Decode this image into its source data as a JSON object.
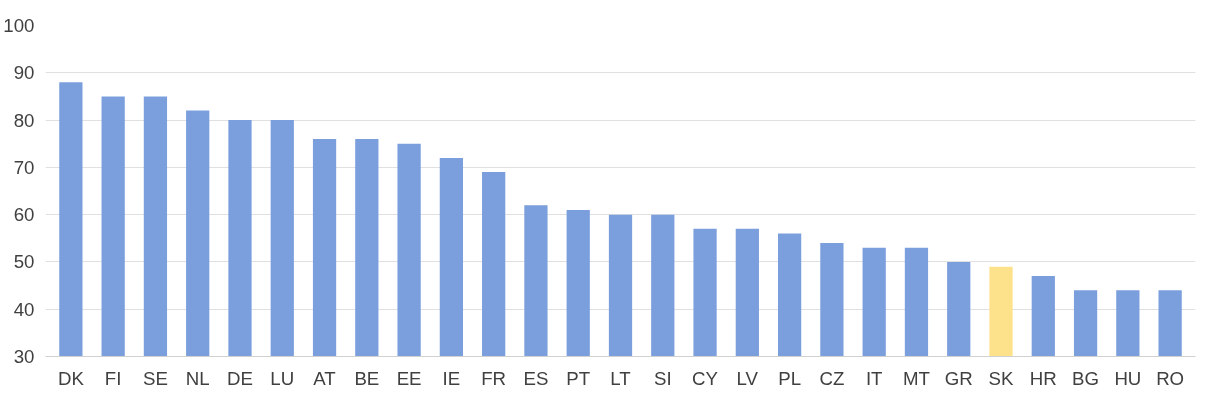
{
  "chart_data": {
    "type": "bar",
    "categories": [
      "DK",
      "FI",
      "SE",
      "NL",
      "DE",
      "LU",
      "AT",
      "BE",
      "EE",
      "IE",
      "FR",
      "ES",
      "PT",
      "LT",
      "SI",
      "CY",
      "LV",
      "PL",
      "CZ",
      "IT",
      "MT",
      "GR",
      "SK",
      "HR",
      "BG",
      "HU",
      "RO"
    ],
    "values": [
      88,
      85,
      85,
      82,
      80,
      80,
      76,
      76,
      75,
      72,
      69,
      62,
      61,
      60,
      60,
      57,
      57,
      56,
      54,
      53,
      53,
      50,
      49,
      47,
      44,
      44,
      44
    ],
    "colors": [
      "#7b9fdd",
      "#7b9fdd",
      "#7b9fdd",
      "#7b9fdd",
      "#7b9fdd",
      "#7b9fdd",
      "#7b9fdd",
      "#7b9fdd",
      "#7b9fdd",
      "#7b9fdd",
      "#7b9fdd",
      "#7b9fdd",
      "#7b9fdd",
      "#7b9fdd",
      "#7b9fdd",
      "#7b9fdd",
      "#7b9fdd",
      "#7b9fdd",
      "#7b9fdd",
      "#7b9fdd",
      "#7b9fdd",
      "#7b9fdd",
      "#fde18b",
      "#7b9fdd",
      "#7b9fdd",
      "#7b9fdd",
      "#7b9fdd"
    ],
    "ylim": [
      30,
      100
    ],
    "yticks": [
      30,
      40,
      50,
      60,
      70,
      80,
      90,
      100
    ],
    "grid": "y"
  }
}
